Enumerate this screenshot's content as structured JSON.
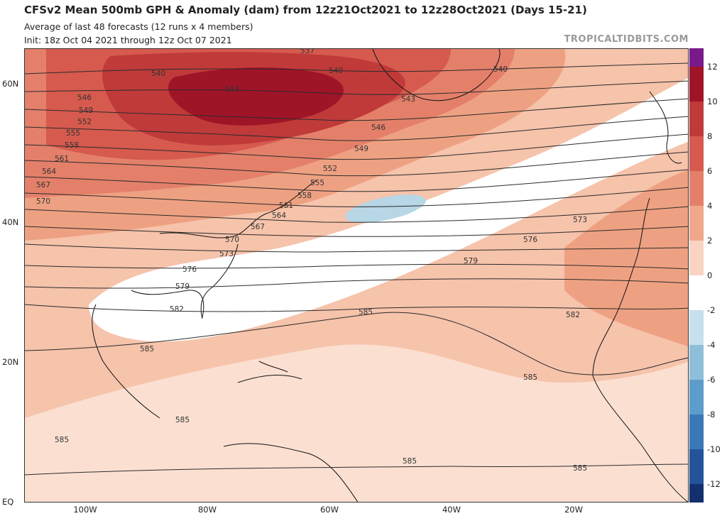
{
  "header": {
    "title": "CFSv2 Mean 500mb GPH & Anomaly (dam) from 12z21Oct2021 to 12z28Oct2021 (Days 15-21)",
    "subtitle1": "Average of last 48 forecasts (12 runs x 4 members)",
    "subtitle2": "Init: 18z Oct 04 2021 through 12z Oct 07 2021",
    "brand": "TROPICALTIDBITS.COM"
  },
  "axes": {
    "lat_labels": [
      "60N",
      "40N",
      "20N",
      "EQ"
    ],
    "lon_labels": [
      "100W",
      "80W",
      "60W",
      "40W",
      "20W"
    ]
  },
  "colorbar": {
    "labels": [
      "12",
      "10",
      "8",
      "6",
      "4",
      "2",
      "0",
      "-2",
      "-4",
      "-6",
      "-8",
      "-10",
      "-12"
    ],
    "colors": [
      "#7a1a8a",
      "#a01428",
      "#c03a3a",
      "#d65a4e",
      "#e4806a",
      "#f0a88c",
      "#f9d4c2",
      "#ffffff",
      "#c6e0ec",
      "#8fbfd8",
      "#5d9ccb",
      "#3a78b8",
      "#24539a",
      "#13306e",
      "#0a1a44"
    ]
  },
  "contours": {
    "labels": [
      "540",
      "540",
      "540",
      "543",
      "543",
      "546",
      "546",
      "549",
      "549",
      "552",
      "552",
      "555",
      "555",
      "558",
      "558",
      "561",
      "561",
      "564",
      "564",
      "567",
      "567",
      "570",
      "570",
      "573",
      "573",
      "576",
      "576",
      "579",
      "579",
      "582",
      "582",
      "585",
      "585",
      "585",
      "585",
      "585",
      "585",
      "585",
      "537"
    ]
  }
}
